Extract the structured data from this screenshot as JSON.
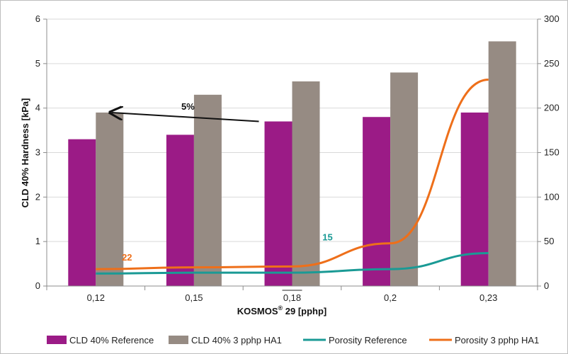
{
  "chart_data": {
    "type": "bar",
    "title": "",
    "xlabel": "KOSMOS® 29 [pphp]",
    "xlabel_main": "KOSMOS",
    "xlabel_sup": "®",
    "xlabel_rest": " 29 [pphp]",
    "ylabel": "CLD 40% Hardness [kPa]",
    "y2label": "",
    "ylim": [
      0,
      6
    ],
    "y2lim": [
      0,
      300
    ],
    "yticks": [
      "0",
      "1",
      "2",
      "3",
      "4",
      "5",
      "6"
    ],
    "y2ticks": [
      "0",
      "50",
      "100",
      "150",
      "200",
      "250",
      "300"
    ],
    "categories": [
      "0,12",
      "0,15",
      "0,18",
      "0,2",
      "0,23"
    ],
    "grid": "horizontal",
    "legend_position": "bottom",
    "series": [
      {
        "name": "CLD 40% Reference",
        "type": "bar",
        "axis": "left",
        "color": "#9b1b86",
        "values": [
          3.3,
          3.4,
          3.7,
          3.8,
          3.9
        ]
      },
      {
        "name": "CLD 40% 3 pphp HA1",
        "type": "bar",
        "axis": "left",
        "color": "#968b83",
        "values": [
          3.9,
          4.3,
          4.6,
          4.8,
          5.5
        ]
      },
      {
        "name": "Porosity Reference",
        "type": "line",
        "axis": "right",
        "color": "#1a9a95",
        "values": [
          14,
          15,
          15,
          19,
          37
        ]
      },
      {
        "name": "Porosity 3 pphp HA1",
        "type": "line",
        "axis": "right",
        "color": "#ee6f1a",
        "values": [
          19,
          21,
          22,
          48,
          232
        ]
      }
    ],
    "annotations": [
      {
        "text": "5%",
        "color": "#111111"
      },
      {
        "text": "22",
        "color": "#ee6f1a"
      },
      {
        "text": "15",
        "color": "#1a9a95"
      }
    ]
  }
}
